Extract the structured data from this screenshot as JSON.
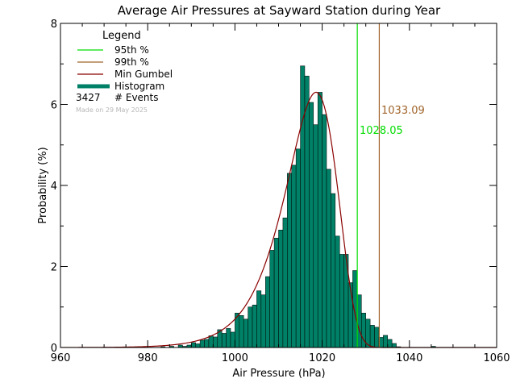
{
  "chart_data": {
    "type": "histogram",
    "title": "Average Air Pressures at Sayward Station during Year",
    "xlabel": "Air Pressure (hPa)",
    "ylabel": "Probability (%)",
    "xlim": [
      960,
      1060
    ],
    "ylim": [
      0,
      8
    ],
    "x_ticks": [
      960,
      980,
      1000,
      1020,
      1040,
      1060
    ],
    "y_ticks": [
      0,
      2,
      4,
      6,
      8
    ],
    "bin_width": 1,
    "bins": [
      {
        "x": 983,
        "y": 0.02
      },
      {
        "x": 984,
        "y": 0.0
      },
      {
        "x": 985,
        "y": 0.03
      },
      {
        "x": 986,
        "y": 0.0
      },
      {
        "x": 987,
        "y": 0.06
      },
      {
        "x": 988,
        "y": 0.03
      },
      {
        "x": 989,
        "y": 0.06
      },
      {
        "x": 990,
        "y": 0.12
      },
      {
        "x": 991,
        "y": 0.09
      },
      {
        "x": 992,
        "y": 0.18
      },
      {
        "x": 993,
        "y": 0.2
      },
      {
        "x": 994,
        "y": 0.29
      },
      {
        "x": 995,
        "y": 0.26
      },
      {
        "x": 996,
        "y": 0.44
      },
      {
        "x": 997,
        "y": 0.35
      },
      {
        "x": 998,
        "y": 0.47
      },
      {
        "x": 999,
        "y": 0.38
      },
      {
        "x": 1000,
        "y": 0.85
      },
      {
        "x": 1001,
        "y": 0.79
      },
      {
        "x": 1002,
        "y": 0.7
      },
      {
        "x": 1003,
        "y": 1.0
      },
      {
        "x": 1004,
        "y": 1.05
      },
      {
        "x": 1005,
        "y": 1.4
      },
      {
        "x": 1006,
        "y": 1.3
      },
      {
        "x": 1007,
        "y": 1.75
      },
      {
        "x": 1008,
        "y": 2.4
      },
      {
        "x": 1009,
        "y": 2.7
      },
      {
        "x": 1010,
        "y": 2.9
      },
      {
        "x": 1011,
        "y": 3.2
      },
      {
        "x": 1012,
        "y": 4.3
      },
      {
        "x": 1013,
        "y": 4.5
      },
      {
        "x": 1014,
        "y": 4.9
      },
      {
        "x": 1015,
        "y": 6.95
      },
      {
        "x": 1016,
        "y": 6.7
      },
      {
        "x": 1017,
        "y": 6.05
      },
      {
        "x": 1018,
        "y": 5.5
      },
      {
        "x": 1019,
        "y": 6.3
      },
      {
        "x": 1020,
        "y": 5.75
      },
      {
        "x": 1021,
        "y": 4.4
      },
      {
        "x": 1022,
        "y": 3.8
      },
      {
        "x": 1023,
        "y": 2.75
      },
      {
        "x": 1024,
        "y": 2.3
      },
      {
        "x": 1025,
        "y": 2.3
      },
      {
        "x": 1026,
        "y": 1.6
      },
      {
        "x": 1027,
        "y": 1.9
      },
      {
        "x": 1028,
        "y": 1.3
      },
      {
        "x": 1029,
        "y": 0.85
      },
      {
        "x": 1030,
        "y": 0.7
      },
      {
        "x": 1031,
        "y": 0.55
      },
      {
        "x": 1032,
        "y": 0.5
      },
      {
        "x": 1033,
        "y": 0.25
      },
      {
        "x": 1034,
        "y": 0.3
      },
      {
        "x": 1035,
        "y": 0.2
      },
      {
        "x": 1036,
        "y": 0.1
      },
      {
        "x": 1037,
        "y": 0.02
      },
      {
        "x": 1045,
        "y": 0.03
      }
    ],
    "gumbel_curve": {
      "name": "Min Gumbel",
      "mode": 1018.6,
      "scale": 5.9,
      "peak": 6.3
    },
    "percentiles": [
      {
        "name": "95th %",
        "value": 1028.05,
        "label": "1028.05",
        "color": "#00dd00"
      },
      {
        "name": "99th %",
        "value": 1033.09,
        "label": "1033.09",
        "color": "#a0642a"
      }
    ],
    "legend": {
      "title": "Legend",
      "position": "top-left",
      "entries": [
        {
          "label": "95th %",
          "color": "#00dd00",
          "kind": "line"
        },
        {
          "label": "99th %",
          "color": "#a0642a",
          "kind": "line"
        },
        {
          "label": "Min Gumbel",
          "color": "#8b0000",
          "kind": "line"
        },
        {
          "label": "Histogram",
          "color": "#008066",
          "kind": "bar"
        }
      ],
      "events_count": "3427",
      "events_label": "# Events"
    },
    "footnote": "Made on 29 May 2025",
    "colors": {
      "histogram_fill": "#008066",
      "gumbel": "#8b0000",
      "p95": "#00dd00",
      "p99": "#a0642a",
      "footnote": "#b8b8b8"
    }
  }
}
